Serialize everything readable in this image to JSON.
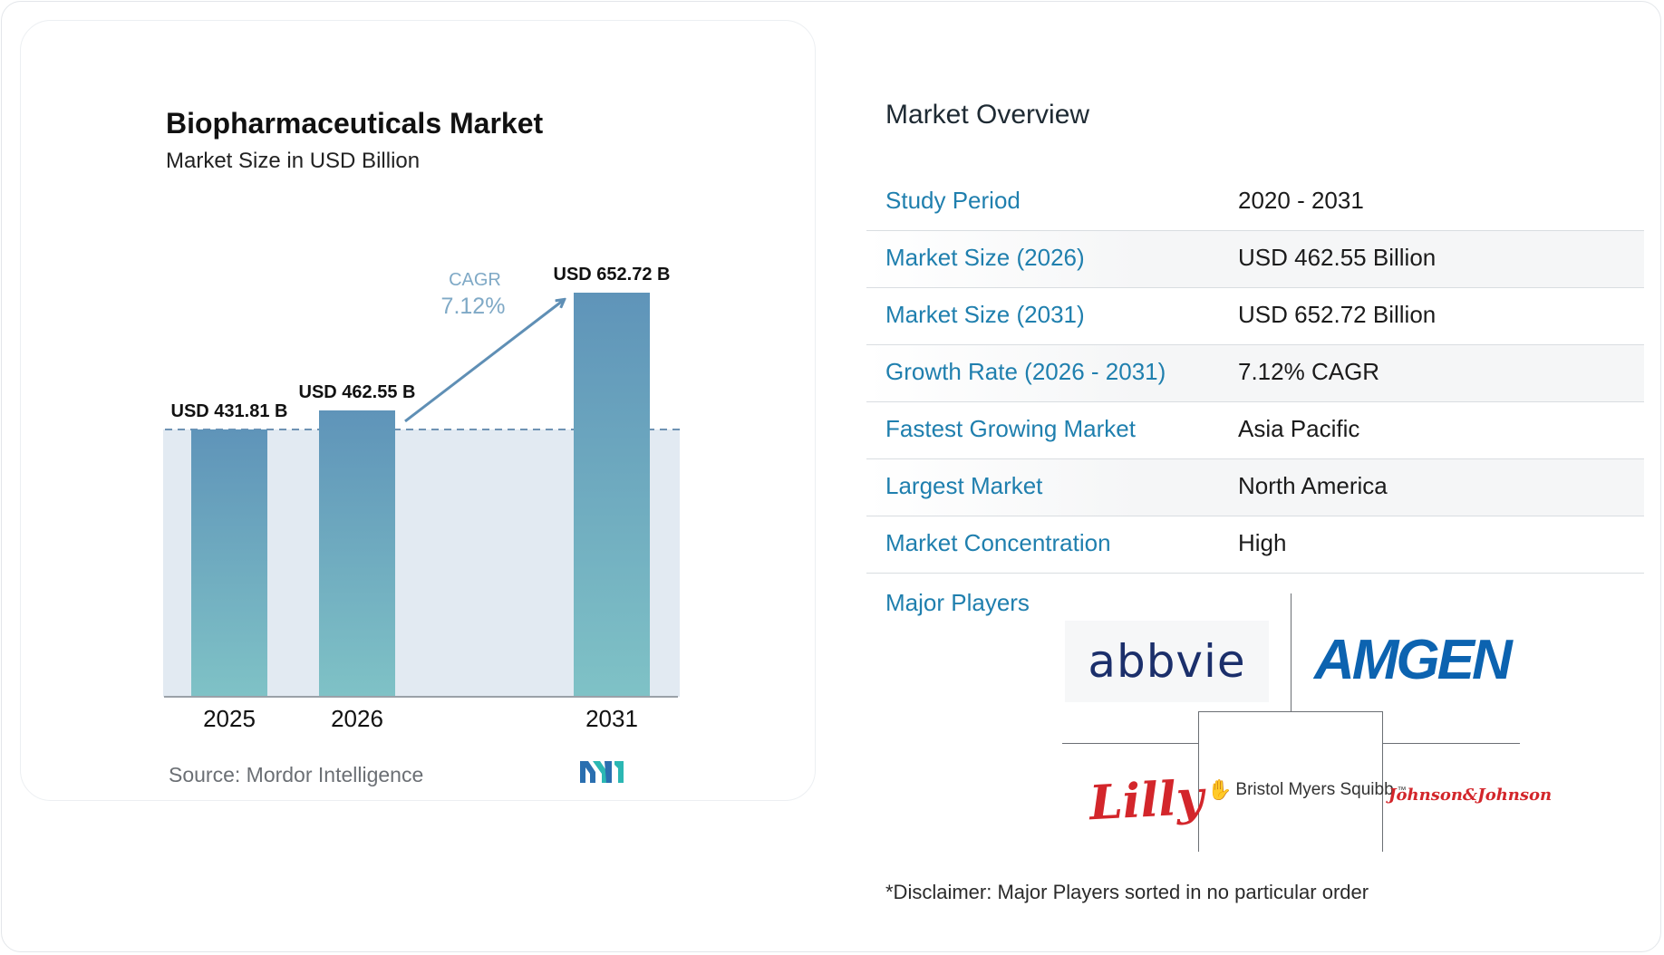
{
  "chart_data": {
    "type": "bar",
    "title": "Biopharmaceuticals Market",
    "subtitle": "Market Size in USD Billion",
    "categories": [
      "2025",
      "2026",
      "2031"
    ],
    "values": [
      431.81,
      462.55,
      652.72
    ],
    "value_labels": [
      "USD 431.81 B",
      "USD 462.55 B",
      "USD 652.72 B"
    ],
    "cagr_label": "CAGR",
    "cagr_value": "7.12%",
    "ylim": [
      0,
      652.72
    ],
    "grid": false,
    "colors": {
      "bar_top": "#5f94b9",
      "bar_bottom": "#7fc2c6",
      "band": "#e2eaf2",
      "arrow": "#5f8fb5",
      "cagr_text": "#7fa9c6"
    }
  },
  "source": "Source:  Mordor Intelligence",
  "brand_icon": "mordor-intelligence-logo",
  "overview": {
    "title": "Market Overview",
    "rows": [
      {
        "label": "Study Period",
        "value": "2020 - 2031"
      },
      {
        "label": "Market Size (2026)",
        "value": "USD 462.55 Billion"
      },
      {
        "label": "Market Size (2031)",
        "value": "USD 652.72 Billion"
      },
      {
        "label": "Growth Rate (2026 - 2031)",
        "value": "7.12% CAGR"
      },
      {
        "label": "Fastest Growing Market",
        "value": "Asia Pacific"
      },
      {
        "label": "Largest Market",
        "value": "North America"
      },
      {
        "label": "Market Concentration",
        "value": "High"
      }
    ]
  },
  "players": {
    "label": "Major Players",
    "logos": {
      "abbvie": "abbvie",
      "amgen": "AMGEN",
      "lilly": "Lilly",
      "bms": "Bristol Myers Squibb",
      "bms_tm": "™",
      "jnj": "Johnson&Johnson"
    }
  },
  "disclaimer": "*Disclaimer: Major Players sorted in no particular order"
}
